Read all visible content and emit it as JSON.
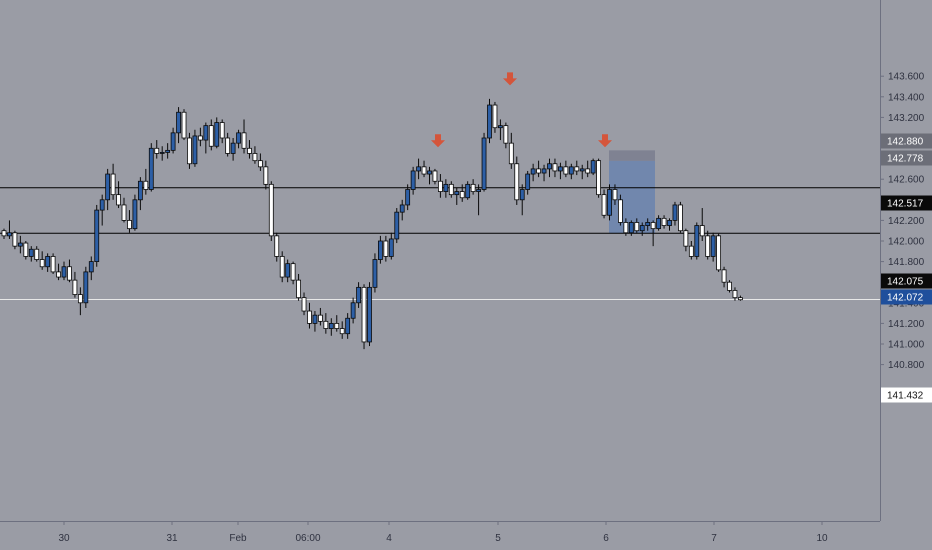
{
  "colors": {
    "background": "#9a9ca5",
    "axis_background": "#9a9ca5",
    "axis_line": "#6d7080",
    "level_line": "#000000",
    "last_price_line": "#e8e8e8",
    "candle_up_fill": "#2d5fa6",
    "candle_down_fill": "#ffffff",
    "candle_outline": "#0a0a0a",
    "short_box_loss": "#7c8090",
    "short_box_profit": "#6f86ad",
    "arrow": "#d4553b",
    "tag_dark_bg": "#0a0a0a",
    "tag_dark_text": "#ffffff",
    "tag_gray_bg": "#6c6e78",
    "tag_blue_bg": "#1f4f9c",
    "tag_white_bg": "#ffffff",
    "tag_white_text": "#111111"
  },
  "chart_data": {
    "type": "candlestick",
    "title": "",
    "xlabel": "",
    "ylabel": "",
    "ylim": [
      140.66,
      143.72
    ],
    "y_ticks": [
      "140.800",
      "141.000",
      "141.200",
      "141.400",
      "141.600",
      "141.800",
      "142.000",
      "142.200",
      "142.400",
      "142.600",
      "142.800",
      "143.000",
      "143.200",
      "143.400",
      "143.600"
    ],
    "x_ticks": [
      "30",
      "31",
      "Feb",
      "06:00",
      "4",
      "5",
      "6",
      "7",
      "10"
    ],
    "candles_ohlc": [
      [
        142.1,
        142.12,
        142.02,
        142.05
      ],
      [
        142.05,
        142.2,
        142.02,
        142.08
      ],
      [
        142.08,
        142.1,
        141.92,
        141.95
      ],
      [
        141.95,
        142.05,
        141.88,
        141.98
      ],
      [
        141.98,
        142.0,
        141.82,
        141.85
      ],
      [
        141.85,
        141.95,
        141.8,
        141.92
      ],
      [
        141.92,
        141.95,
        141.8,
        141.82
      ],
      [
        141.82,
        141.9,
        141.72,
        141.75
      ],
      [
        141.75,
        141.88,
        141.7,
        141.85
      ],
      [
        141.85,
        141.88,
        141.68,
        141.7
      ],
      [
        141.7,
        141.78,
        141.62,
        141.65
      ],
      [
        141.65,
        141.8,
        141.62,
        141.75
      ],
      [
        141.75,
        141.82,
        141.6,
        141.62
      ],
      [
        141.62,
        141.7,
        141.45,
        141.48
      ],
      [
        141.48,
        141.55,
        141.28,
        141.4
      ],
      [
        141.4,
        141.75,
        141.35,
        141.7
      ],
      [
        141.7,
        141.85,
        141.62,
        141.8
      ],
      [
        141.8,
        142.35,
        141.75,
        142.3
      ],
      [
        142.3,
        142.45,
        142.15,
        142.4
      ],
      [
        142.4,
        142.7,
        142.3,
        142.65
      ],
      [
        142.65,
        142.75,
        142.4,
        142.45
      ],
      [
        142.45,
        142.58,
        142.32,
        142.35
      ],
      [
        142.35,
        142.42,
        142.18,
        142.2
      ],
      [
        142.2,
        142.3,
        142.08,
        142.12
      ],
      [
        142.12,
        142.45,
        142.1,
        142.4
      ],
      [
        142.4,
        142.62,
        142.3,
        142.58
      ],
      [
        142.58,
        142.7,
        142.45,
        142.5
      ],
      [
        142.5,
        142.95,
        142.48,
        142.9
      ],
      [
        142.9,
        142.98,
        142.8,
        142.85
      ],
      [
        142.85,
        142.92,
        142.78,
        142.86
      ],
      [
        142.86,
        142.95,
        142.8,
        142.88
      ],
      [
        142.88,
        143.1,
        142.85,
        143.05
      ],
      [
        143.05,
        143.3,
        142.95,
        143.25
      ],
      [
        143.25,
        143.28,
        142.98,
        143.0
      ],
      [
        143.0,
        143.05,
        142.7,
        142.75
      ],
      [
        142.75,
        143.08,
        142.72,
        143.02
      ],
      [
        143.02,
        143.1,
        142.92,
        142.98
      ],
      [
        142.98,
        143.15,
        142.85,
        143.12
      ],
      [
        143.12,
        143.18,
        142.88,
        142.92
      ],
      [
        142.92,
        143.2,
        142.9,
        143.15
      ],
      [
        143.15,
        143.18,
        142.95,
        143.0
      ],
      [
        143.0,
        143.05,
        142.82,
        142.85
      ],
      [
        142.85,
        143.0,
        142.78,
        142.95
      ],
      [
        142.95,
        143.08,
        142.9,
        143.05
      ],
      [
        143.05,
        143.18,
        142.85,
        142.9
      ],
      [
        142.9,
        142.98,
        142.8,
        142.85
      ],
      [
        142.85,
        142.92,
        142.75,
        142.78
      ],
      [
        142.78,
        142.85,
        142.68,
        142.72
      ],
      [
        142.72,
        142.78,
        142.5,
        142.55
      ],
      [
        142.55,
        142.58,
        142.0,
        142.05
      ],
      [
        142.05,
        142.08,
        141.8,
        141.85
      ],
      [
        141.85,
        141.9,
        141.6,
        141.65
      ],
      [
        141.65,
        141.82,
        141.6,
        141.78
      ],
      [
        141.78,
        141.8,
        141.58,
        141.62
      ],
      [
        141.62,
        141.68,
        141.42,
        141.45
      ],
      [
        141.45,
        141.5,
        141.28,
        141.32
      ],
      [
        141.32,
        141.4,
        141.15,
        141.2
      ],
      [
        141.2,
        141.32,
        141.12,
        141.28
      ],
      [
        141.28,
        141.35,
        141.18,
        141.22
      ],
      [
        141.22,
        141.3,
        141.1,
        141.15
      ],
      [
        141.15,
        141.25,
        141.08,
        141.2
      ],
      [
        141.2,
        141.28,
        141.12,
        141.15
      ],
      [
        141.15,
        141.22,
        141.05,
        141.1
      ],
      [
        141.1,
        141.3,
        141.05,
        141.25
      ],
      [
        141.25,
        141.45,
        141.2,
        141.4
      ],
      [
        141.4,
        141.6,
        141.35,
        141.55
      ],
      [
        141.55,
        141.58,
        140.95,
        141.02
      ],
      [
        141.02,
        141.6,
        140.98,
        141.55
      ],
      [
        141.55,
        141.88,
        141.5,
        141.82
      ],
      [
        141.82,
        142.05,
        141.78,
        142.0
      ],
      [
        142.0,
        142.05,
        141.8,
        141.85
      ],
      [
        141.85,
        142.08,
        141.82,
        142.02
      ],
      [
        142.02,
        142.32,
        141.98,
        142.28
      ],
      [
        142.28,
        142.4,
        142.2,
        142.35
      ],
      [
        142.35,
        142.55,
        142.3,
        142.5
      ],
      [
        142.5,
        142.72,
        142.45,
        142.68
      ],
      [
        142.68,
        142.8,
        142.6,
        142.72
      ],
      [
        142.72,
        142.78,
        142.62,
        142.65
      ],
      [
        142.65,
        142.72,
        142.55,
        142.68
      ],
      [
        142.68,
        142.7,
        142.55,
        142.58
      ],
      [
        142.58,
        142.65,
        142.42,
        142.48
      ],
      [
        142.48,
        142.6,
        142.42,
        142.55
      ],
      [
        142.55,
        142.58,
        142.42,
        142.45
      ],
      [
        142.45,
        142.52,
        142.35,
        142.48
      ],
      [
        142.48,
        142.55,
        142.38,
        142.42
      ],
      [
        142.42,
        142.58,
        142.4,
        142.55
      ],
      [
        142.55,
        142.6,
        142.45,
        142.48
      ],
      [
        142.48,
        142.55,
        142.25,
        142.5
      ],
      [
        142.5,
        143.05,
        142.48,
        143.0
      ],
      [
        143.0,
        143.38,
        142.95,
        143.32
      ],
      [
        143.32,
        143.35,
        143.05,
        143.1
      ],
      [
        143.1,
        143.18,
        142.98,
        143.12
      ],
      [
        143.12,
        143.15,
        142.9,
        142.95
      ],
      [
        142.95,
        143.05,
        142.7,
        142.75
      ],
      [
        142.75,
        142.82,
        142.35,
        142.4
      ],
      [
        142.4,
        142.55,
        142.25,
        142.5
      ],
      [
        142.5,
        142.68,
        142.45,
        142.65
      ],
      [
        142.65,
        142.75,
        142.58,
        142.7
      ],
      [
        142.7,
        142.78,
        142.62,
        142.66
      ],
      [
        142.66,
        142.74,
        142.58,
        142.7
      ],
      [
        142.7,
        142.8,
        142.62,
        142.75
      ],
      [
        142.75,
        142.8,
        142.62,
        142.68
      ],
      [
        142.68,
        142.76,
        142.6,
        142.72
      ],
      [
        142.72,
        142.78,
        142.62,
        142.65
      ],
      [
        142.65,
        142.75,
        142.6,
        142.72
      ],
      [
        142.72,
        142.78,
        142.64,
        142.68
      ],
      [
        142.68,
        142.74,
        142.6,
        142.7
      ],
      [
        142.7,
        142.78,
        142.62,
        142.66
      ],
      [
        142.66,
        142.8,
        142.64,
        142.78
      ],
      [
        142.78,
        142.8,
        142.42,
        142.45
      ],
      [
        142.45,
        142.5,
        142.22,
        142.25
      ],
      [
        142.25,
        142.55,
        142.2,
        142.5
      ],
      [
        142.5,
        142.55,
        142.35,
        142.4
      ],
      [
        142.4,
        142.45,
        142.15,
        142.18
      ],
      [
        142.18,
        142.22,
        142.05,
        142.08
      ],
      [
        142.08,
        142.2,
        142.05,
        142.18
      ],
      [
        142.18,
        142.22,
        142.08,
        142.1
      ],
      [
        142.1,
        142.18,
        142.05,
        142.15
      ],
      [
        142.15,
        142.22,
        142.1,
        142.18
      ],
      [
        142.18,
        142.2,
        141.95,
        142.12
      ],
      [
        142.12,
        142.25,
        142.1,
        142.22
      ],
      [
        142.22,
        142.25,
        142.12,
        142.15
      ],
      [
        142.15,
        142.22,
        142.1,
        142.2
      ],
      [
        142.2,
        142.38,
        142.15,
        142.35
      ],
      [
        142.35,
        142.38,
        142.08,
        142.1
      ],
      [
        142.1,
        142.12,
        141.9,
        141.95
      ],
      [
        141.95,
        142.0,
        141.82,
        141.85
      ],
      [
        141.85,
        142.18,
        141.82,
        142.15
      ],
      [
        142.15,
        142.32,
        142.0,
        142.05
      ],
      [
        142.05,
        142.1,
        141.82,
        141.85
      ],
      [
        141.85,
        142.08,
        141.8,
        142.05
      ],
      [
        142.05,
        142.07,
        141.7,
        141.72
      ],
      [
        141.72,
        141.75,
        141.55,
        141.6
      ],
      [
        141.6,
        141.62,
        141.5,
        141.52
      ],
      [
        141.52,
        141.55,
        141.42,
        141.45
      ],
      [
        141.45,
        141.47,
        141.42,
        141.43
      ]
    ],
    "horizontal_levels": [
      142.517,
      142.075
    ],
    "last_price": 141.432,
    "short_position": {
      "entry": 142.778,
      "stop": 142.88,
      "target": 142.075
    },
    "down_arrows_above_price": [
      142.93,
      143.53,
      142.93
    ],
    "price_tags": [
      {
        "value": "142.880",
        "style": "gray"
      },
      {
        "value": "142.778",
        "style": "gray"
      },
      {
        "value": "142.517",
        "style": "dark"
      },
      {
        "value": "142.075",
        "style": "dark"
      },
      {
        "value": "142.072",
        "style": "blue"
      },
      {
        "value": "141.432",
        "style": "white"
      }
    ]
  }
}
